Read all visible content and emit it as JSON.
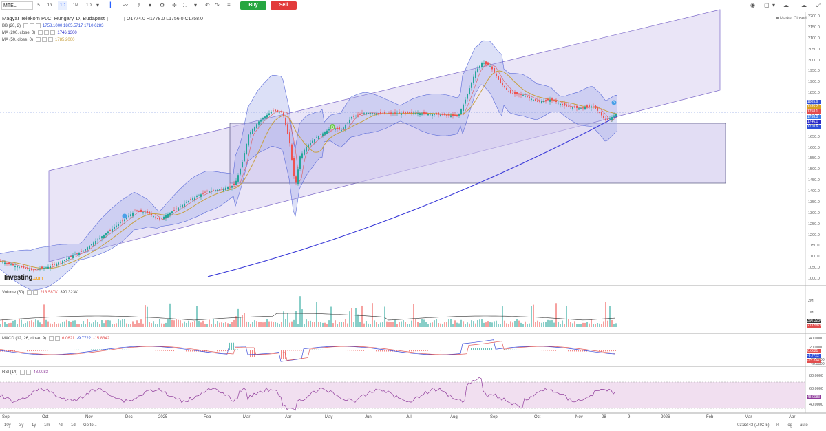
{
  "toolbar": {
    "symbol": "MTEL",
    "intervals": [
      "5",
      "1h",
      "1D",
      "1M",
      "1D"
    ],
    "active_interval_index": 2,
    "buy_label": "Buy",
    "sell_label": "Sell"
  },
  "legend": {
    "title": "Magyar Telekom PLC, Hungary, D, Budapest",
    "ohlc": "O1774.0  H1778.0  L1756.0  C1758.0",
    "bb": {
      "label": "BB (20, 2)",
      "values": "1758.1000  1805.5717  1710.6283"
    },
    "ma200": {
      "label": "MA (200, close, 0)",
      "value": "1746.1300"
    },
    "ma50": {
      "label": "MA (50, close, 0)",
      "value": "1785.2000"
    },
    "volume": {
      "label": "Volume (50)",
      "v1": "213.587K",
      "v2": "390.323K"
    },
    "macd": {
      "label": "MACD (12, 26, close, 9)",
      "v1": "6.0621",
      "v2": "-9.7722",
      "v3": "-15.8342"
    },
    "rsi": {
      "label": "RSI (14)",
      "value": "48.0083"
    }
  },
  "market_status": "Market Closed",
  "price_axis": [
    "2200.0",
    "2150.0",
    "2100.0",
    "2050.0",
    "2000.0",
    "1950.0",
    "1900.0",
    "1850.0",
    "1800.0",
    "1750.0",
    "1700.0",
    "1650.0",
    "1600.0",
    "1550.0",
    "1500.0",
    "1450.0",
    "1400.0",
    "1350.0",
    "1300.0",
    "1250.0",
    "1200.0",
    "1150.0",
    "1100.0",
    "1050.0",
    "1000.0"
  ],
  "price_badges": [
    {
      "text": "1805.6",
      "color": "#2f4fd8"
    },
    {
      "text": "1785.2",
      "color": "#d9a021"
    },
    {
      "text": "1758.1",
      "color": "#e24d4d"
    },
    {
      "text": "1758.0",
      "color": "#3a7ce8"
    },
    {
      "text": "1746.1",
      "color": "#2a2ac8"
    },
    {
      "text": "1710.6",
      "color": "#2f4fd8"
    }
  ],
  "volume_axis": [
    "2M",
    "1M"
  ],
  "volume_badges": [
    {
      "text": "390.323K",
      "color": "#333"
    },
    {
      "text": "213.587K",
      "color": "#e24d4d"
    }
  ],
  "macd_axis": [
    "40.0000",
    "20.0000",
    "-20.0000",
    "-40.0000"
  ],
  "macd_badges": [
    {
      "text": "6.0621",
      "color": "#e24d4d"
    },
    {
      "text": "-9.7722",
      "color": "#2f4fd8"
    },
    {
      "text": "-15.8342",
      "color": "#e24d4d"
    }
  ],
  "rsi_axis": [
    "80.0000",
    "60.0000",
    "40.0000"
  ],
  "rsi_badge": {
    "text": "48.0083",
    "color": "#8e3a9a"
  },
  "x_axis": [
    "Sep",
    "Oct",
    "Nov",
    "Dec",
    "2025",
    "Feb",
    "Mar",
    "Apr",
    "May",
    "Jun",
    "Jul",
    "Aug",
    "Sep",
    "Oct",
    "Nov",
    "28",
    "9",
    "2026",
    "Feb",
    "Mar",
    "Apr"
  ],
  "bottom": {
    "ranges": [
      "10y",
      "3y",
      "1y",
      "1m",
      "7d",
      "1d",
      "Go to..."
    ],
    "time": "03:33:43 (UTC-5)",
    "right": [
      "%",
      "log",
      "auto"
    ]
  },
  "logo": {
    "text": "Investing",
    "suffix": ".com"
  },
  "markers": {
    "d": "D",
    "p": "P"
  },
  "colors": {
    "up": "#26a69a",
    "down": "#ef5350",
    "channel": "#7b68c8",
    "ma50": "#c8a040",
    "ma200": "#3a3ad8",
    "bb": "#5a6ad8"
  }
}
